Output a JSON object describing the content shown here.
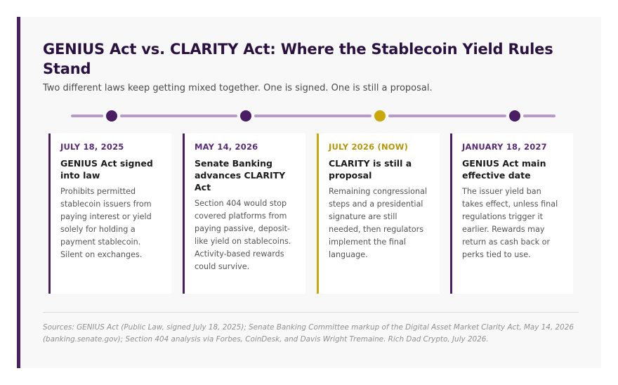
{
  "header": {
    "title": "GENIUS Act vs. CLARITY Act: Where the Stablecoin Yield Rules Stand",
    "subtitle": "Two different laws keep getting mixed together. One is signed. One is still a proposal."
  },
  "colors": {
    "accent": "#4a1e63",
    "current": "#c9a80a",
    "timeline_line": "#b79ac8"
  },
  "events": [
    {
      "date": "JULY 18, 2025",
      "title": "GENIUS Act signed into law",
      "body": "Prohibits permitted stablecoin issuers from paying interest or yield solely for holding a payment stablecoin. Silent on exchanges.",
      "current": false
    },
    {
      "date": "MAY 14, 2026",
      "title": "Senate Banking advances CLARITY Act",
      "body": "Section 404 would stop covered platforms from paying passive, deposit-like yield on stablecoins. Activity-based rewards could survive.",
      "current": false
    },
    {
      "date": "JULY 2026 (NOW)",
      "title": "CLARITY is still a proposal",
      "body": "Remaining congressional steps and a presidential signature are still needed, then regulators implement the final language.",
      "current": true
    },
    {
      "date": "JANUARY 18, 2027",
      "title": "GENIUS Act main effective date",
      "body": "The issuer yield ban takes effect, unless final regulations trigger it earlier. Rewards may return as cash back or perks tied to use.",
      "current": false
    }
  ],
  "footer": {
    "sources": "Sources: GENIUS Act (Public Law, signed July 18, 2025); Senate Banking Committee markup of the Digital Asset Market Clarity Act, May 14, 2026 (banking.senate.gov); Section 404 analysis via Forbes, CoinDesk, and Davis Wright Tremaine. Rich Dad Crypto, July 2026."
  }
}
